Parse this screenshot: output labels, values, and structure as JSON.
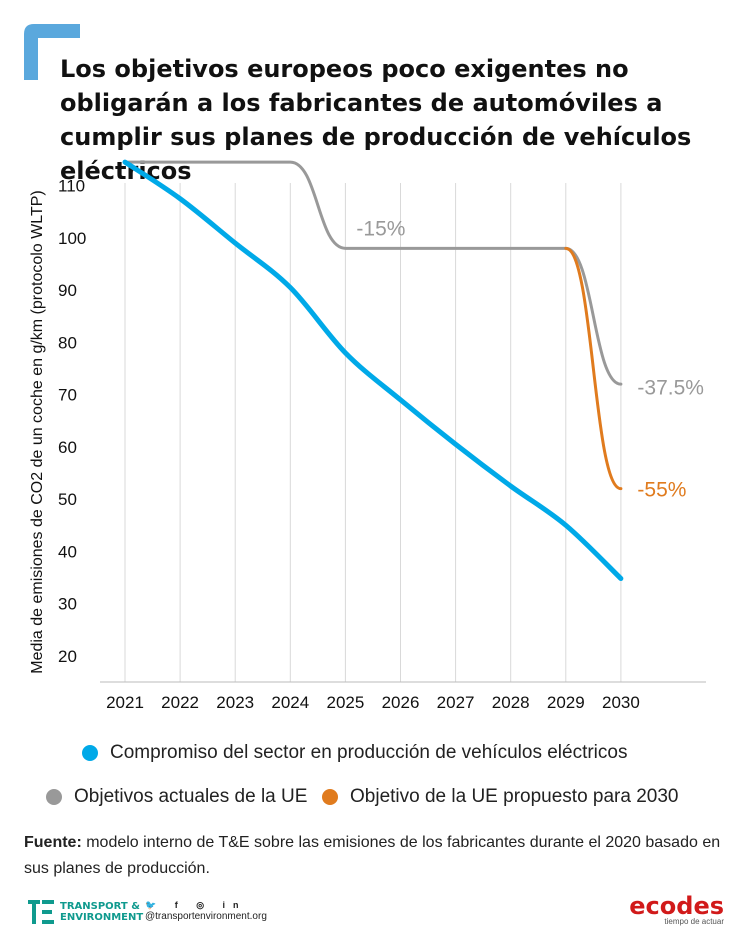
{
  "title": "Los objetivos europeos poco exigentes no obligarán a los fabricantes de automóviles a cumplir sus planes de producción de vehículos eléctricos",
  "chart_data": {
    "type": "line",
    "ylabel": "Media de emisiones de CO2 de un coche en g/km (protocolo WLTP)",
    "xlabel": "",
    "x_ticks": [
      "2021",
      "2022",
      "2023",
      "2024",
      "2025",
      "2026",
      "2027",
      "2028",
      "2029",
      "2030"
    ],
    "y_ticks": [
      20,
      30,
      40,
      50,
      60,
      70,
      80,
      90,
      100,
      110
    ],
    "ylim": [
      20,
      115
    ],
    "xlim": [
      2021,
      2030
    ],
    "grid": "vertical",
    "series": [
      {
        "name": "Compromiso del sector en producción de vehículos eléctricos",
        "color": "#00a9e8",
        "x": [
          2021,
          2022,
          2023,
          2024,
          2025,
          2026,
          2027,
          2028,
          2029,
          2030
        ],
        "y": [
          114.5,
          107.5,
          99,
          90.5,
          78,
          69,
          60.5,
          52.5,
          45,
          34.8
        ]
      },
      {
        "name": "Objetivos actuales de la UE",
        "color": "#999999",
        "x": [
          2021,
          2024,
          2025,
          2029,
          2030
        ],
        "y": [
          114.5,
          114.5,
          98,
          98,
          72
        ]
      },
      {
        "name": "Objetivo de la UE propuesto para 2030",
        "color": "#e07b1e",
        "x": [
          2029,
          2030
        ],
        "y": [
          98,
          52
        ]
      }
    ],
    "annotations": [
      {
        "text": "-15%",
        "x": 2025.2,
        "y": 100.5,
        "color": "#999999"
      },
      {
        "text": "-37.5%",
        "x": 2030.3,
        "y": 70,
        "color": "#999999"
      },
      {
        "text": "-55%",
        "x": 2030.3,
        "y": 50.5,
        "color": "#e07b1e"
      }
    ]
  },
  "legend": {
    "blue": "Compromiso del sector en producción de vehículos eléctricos",
    "grey": "Objetivos actuales de la UE",
    "orange": "Objetivo de la UE propuesto para 2030"
  },
  "source": {
    "label": "Fuente:",
    "text": " modelo interno de T&E sobre las emisiones de los fabricantes durante el 2020 basado en sus planes de producción."
  },
  "footer": {
    "te_line1": "TRANSPORT &",
    "te_line2": "ENVIRONMENT",
    "social_icons": "🐦 f ◎ in",
    "handle": "@transportenvironment.org",
    "ecodes": "ecodes",
    "ecodes_tag": "tiempo de actuar"
  },
  "colors": {
    "accent_corner": "#5aa8dd",
    "blue": "#00a9e8",
    "grey": "#999999",
    "orange": "#e07b1e"
  }
}
